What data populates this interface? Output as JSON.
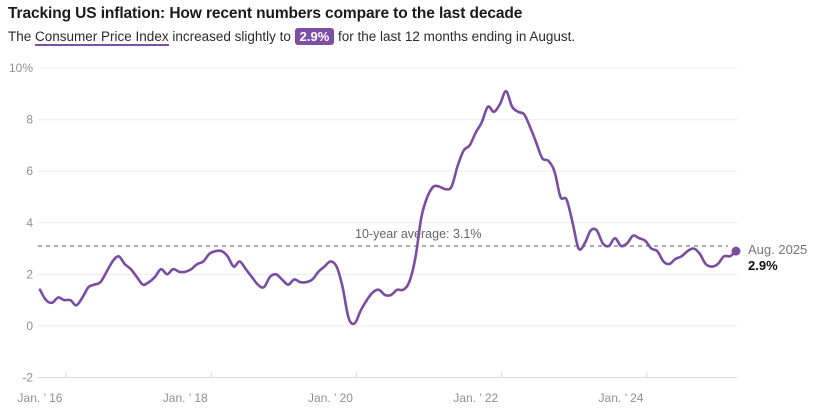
{
  "header": {
    "title": "Tracking US inflation: How recent numbers compare to the last decade",
    "subtitle_prefix": "The ",
    "subtitle_link": "Consumer Price Index",
    "subtitle_mid": " increased slightly to ",
    "subtitle_badge": "2.9%",
    "subtitle_suffix": " for the last 12 months ending in August."
  },
  "colors": {
    "accent_purple": "#7d4fa5",
    "series_line": "#7a4da2",
    "gridline": "#ececec",
    "axis_line": "#d9d9d9",
    "tick_label": "#8f8f8f",
    "average_line": "#7a7a7a",
    "annotation_gray": "#757575",
    "text_dark": "#1a1a1a"
  },
  "chart_data": {
    "type": "line",
    "title": "Tracking US inflation: How recent numbers compare to the last decade",
    "unit": "percent, year-over-year CPI change",
    "frequency": "monthly",
    "start_month": "2016-01",
    "end_month": "2025-08",
    "grid": true,
    "legend": false,
    "ylim": [
      -2,
      10
    ],
    "yticks": [
      {
        "label": "10%",
        "value": 10
      },
      {
        "label": "8",
        "value": 8
      },
      {
        "label": "6",
        "value": 6
      },
      {
        "label": "4",
        "value": 4
      },
      {
        "label": "2",
        "value": 2
      },
      {
        "label": "0",
        "value": 0
      },
      {
        "label": "-2",
        "value": -2
      }
    ],
    "xticks": [
      {
        "label": "Jan. ’ 16",
        "month_index": 0
      },
      {
        "label": "Jan. ’ 18",
        "month_index": 24
      },
      {
        "label": "Jan. ’ 20",
        "month_index": 48
      },
      {
        "label": "Jan. ’ 22",
        "month_index": 72
      },
      {
        "label": "Jan. ’ 24",
        "month_index": 96
      }
    ],
    "series": [
      {
        "name": "Consumer Price Index, 12-month change",
        "values": [
          1.4,
          1.0,
          0.9,
          1.1,
          1.0,
          1.0,
          0.8,
          1.1,
          1.5,
          1.6,
          1.7,
          2.1,
          2.5,
          2.7,
          2.4,
          2.2,
          1.9,
          1.6,
          1.7,
          1.9,
          2.2,
          2.0,
          2.2,
          2.1,
          2.1,
          2.2,
          2.4,
          2.5,
          2.8,
          2.9,
          2.9,
          2.7,
          2.3,
          2.5,
          2.2,
          1.9,
          1.6,
          1.5,
          1.9,
          2.0,
          1.8,
          1.6,
          1.8,
          1.7,
          1.7,
          1.8,
          2.1,
          2.3,
          2.5,
          2.3,
          1.5,
          0.3,
          0.1,
          0.6,
          1.0,
          1.3,
          1.4,
          1.2,
          1.2,
          1.4,
          1.4,
          1.7,
          2.6,
          4.2,
          5.0,
          5.4,
          5.4,
          5.3,
          5.4,
          6.2,
          6.8,
          7.0,
          7.5,
          7.9,
          8.5,
          8.3,
          8.6,
          9.1,
          8.5,
          8.3,
          8.2,
          7.7,
          7.1,
          6.5,
          6.4,
          6.0,
          5.0,
          4.9,
          4.0,
          3.0,
          3.2,
          3.7,
          3.7,
          3.2,
          3.1,
          3.4,
          3.1,
          3.2,
          3.5,
          3.4,
          3.3,
          3.0,
          2.9,
          2.5,
          2.4,
          2.6,
          2.7,
          2.9,
          3.0,
          2.8,
          2.4,
          2.3,
          2.4,
          2.7,
          2.7,
          2.9
        ]
      }
    ],
    "average_line": {
      "label": "10-year average: 3.1%",
      "value": 3.1
    },
    "end_annotation": {
      "date_label": "Aug. 2025",
      "value_label": "2.9%",
      "value": 2.9
    }
  }
}
